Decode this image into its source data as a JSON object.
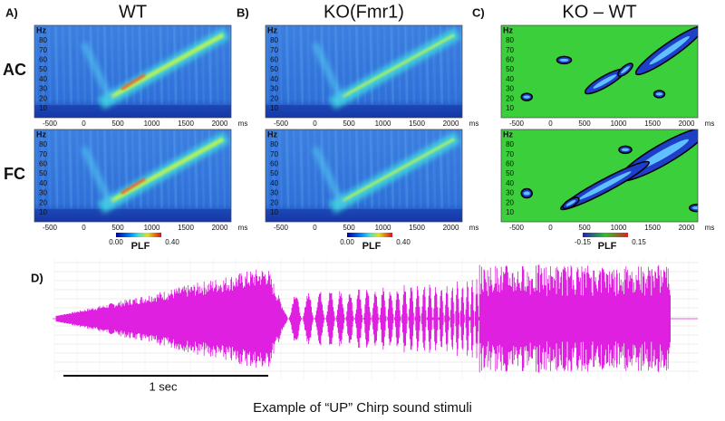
{
  "rows": [
    "AC",
    "FC"
  ],
  "panels": [
    {
      "label": "A)",
      "title": "WT",
      "colorbar": {
        "min": "0.00",
        "max": "0.40",
        "label": "PLF"
      }
    },
    {
      "label": "B)",
      "title": "KO(Fmr1)",
      "colorbar": {
        "min": "0.00",
        "max": "0.40",
        "label": "PLF"
      }
    },
    {
      "label": "C)",
      "title": "KO – WT",
      "colorbar": {
        "min": "-0.15",
        "max": "0.15",
        "label": "PLF"
      }
    }
  ],
  "y_axis": {
    "unit": "Hz",
    "ticks": [
      10,
      20,
      30,
      40,
      50,
      60,
      70,
      80
    ]
  },
  "x_axis": {
    "unit": "ms",
    "ticks": [
      -500,
      0,
      500,
      1000,
      1500,
      2000
    ]
  },
  "waveform": {
    "label": "D)",
    "scale_bar": "1 sec",
    "caption": "Example of “UP” Chirp sound stimuli"
  }
}
